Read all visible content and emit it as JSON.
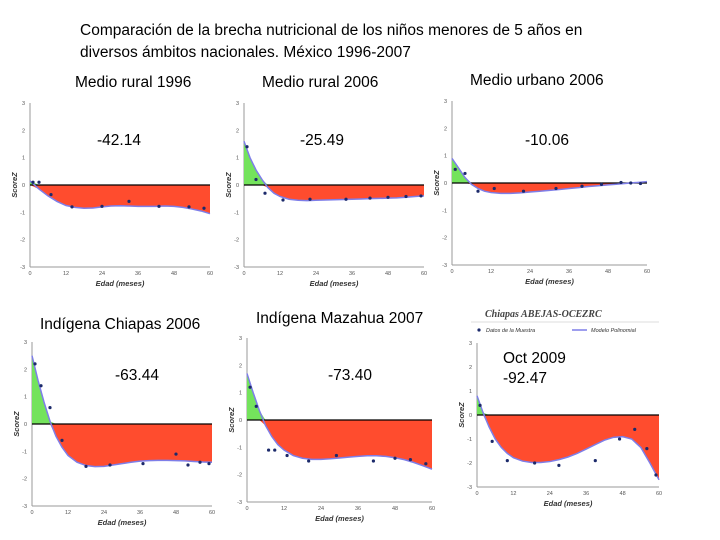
{
  "title": "Comparación de la brecha nutricional de los niños menores de 5 años en diversos ámbitos nacionales. México 1996-2007",
  "colors": {
    "deficit": "#ff4c2e",
    "surplus": "#74e35c",
    "curve": "#7e7ee8",
    "points": "#1c2a6b"
  },
  "chart_data": [
    {
      "type": "area",
      "panel_title": "Medio rural 1996",
      "value_label": "-42.14",
      "xlabel": "Edad (meses)",
      "ylabel": "ScoreZ",
      "xlim": [
        0,
        60
      ],
      "ylim": [
        -3,
        3
      ],
      "x_ticks": [
        "0",
        "12",
        "24",
        "36",
        "48",
        "60"
      ],
      "y_ticks": [
        "3",
        "2",
        "1",
        "0",
        "-1",
        "-2",
        "-3"
      ],
      "curve": {
        "x": [
          0,
          3,
          6,
          9,
          12,
          15,
          18,
          21,
          24,
          27,
          30,
          33,
          36,
          39,
          42,
          45,
          48,
          51,
          54,
          57,
          60
        ],
        "y": [
          0.15,
          -0.15,
          -0.4,
          -0.6,
          -0.75,
          -0.82,
          -0.85,
          -0.84,
          -0.8,
          -0.77,
          -0.76,
          -0.77,
          -0.78,
          -0.78,
          -0.78,
          -0.77,
          -0.78,
          -0.82,
          -0.88,
          -0.95,
          -1.05
        ]
      },
      "points": {
        "x": [
          1,
          3,
          7,
          14,
          24,
          33,
          43,
          53,
          58
        ],
        "y": [
          0.1,
          0.1,
          -0.35,
          -0.8,
          -0.78,
          -0.6,
          -0.78,
          -0.8,
          -0.85
        ]
      }
    },
    {
      "type": "area",
      "panel_title": "Medio rural  2006",
      "value_label": "-25.49",
      "xlabel": "Edad (meses)",
      "ylabel": "ScoreZ",
      "xlim": [
        0,
        60
      ],
      "ylim": [
        -3,
        3
      ],
      "x_ticks": [
        "0",
        "12",
        "24",
        "36",
        "48",
        "60"
      ],
      "y_ticks": [
        "3",
        "2",
        "1",
        "0",
        "-1",
        "-2",
        "-3"
      ],
      "curve": {
        "x": [
          0,
          2,
          4,
          6,
          8,
          10,
          12,
          15,
          18,
          21,
          24,
          27,
          30,
          33,
          36,
          39,
          42,
          45,
          48,
          51,
          54,
          57,
          60
        ],
        "y": [
          1.6,
          1.0,
          0.55,
          0.2,
          -0.1,
          -0.3,
          -0.42,
          -0.52,
          -0.56,
          -0.57,
          -0.56,
          -0.55,
          -0.54,
          -0.53,
          -0.52,
          -0.51,
          -0.5,
          -0.49,
          -0.48,
          -0.47,
          -0.45,
          -0.42,
          -0.4
        ]
      },
      "points": {
        "x": [
          1,
          4,
          7,
          13,
          22,
          34,
          42,
          48,
          54,
          59
        ],
        "y": [
          1.4,
          0.2,
          -0.3,
          -0.55,
          -0.52,
          -0.52,
          -0.48,
          -0.45,
          -0.42,
          -0.4
        ]
      }
    },
    {
      "type": "area",
      "panel_title": "Medio urbano  2006",
      "value_label": "-10.06",
      "xlabel": "Edad (meses)",
      "ylabel": "ScoreZ",
      "xlim": [
        0,
        60
      ],
      "ylim": [
        -3,
        3
      ],
      "x_ticks": [
        "0",
        "12",
        "24",
        "36",
        "48",
        "60"
      ],
      "y_ticks": [
        "3",
        "2",
        "1",
        "0",
        "-1",
        "-2",
        "-3"
      ],
      "curve": {
        "x": [
          0,
          2,
          4,
          6,
          8,
          10,
          12,
          15,
          18,
          21,
          24,
          27,
          30,
          33,
          36,
          39,
          42,
          45,
          48,
          51,
          54,
          57,
          60
        ],
        "y": [
          0.9,
          0.55,
          0.2,
          -0.05,
          -0.2,
          -0.3,
          -0.35,
          -0.38,
          -0.38,
          -0.36,
          -0.33,
          -0.3,
          -0.27,
          -0.24,
          -0.2,
          -0.17,
          -0.13,
          -0.1,
          -0.07,
          -0.04,
          -0.01,
          0.02,
          0.05
        ]
      },
      "points": {
        "x": [
          1,
          4,
          8,
          13,
          22,
          32,
          40,
          46,
          52,
          55,
          58
        ],
        "y": [
          0.5,
          0.35,
          -0.3,
          -0.2,
          -0.3,
          -0.2,
          -0.12,
          -0.05,
          0.02,
          0.0,
          -0.02
        ]
      }
    },
    {
      "type": "area",
      "panel_title": "Indígena Chiapas 2006",
      "value_label": "-63.44",
      "xlabel": "Edad (meses)",
      "ylabel": "ScoreZ",
      "xlim": [
        0,
        60
      ],
      "ylim": [
        -3,
        3
      ],
      "x_ticks": [
        "0",
        "12",
        "24",
        "36",
        "48",
        "60"
      ],
      "y_ticks": [
        "3",
        "2",
        "1",
        "0",
        "-1",
        "-2",
        "-3"
      ],
      "curve": {
        "x": [
          0,
          2,
          4,
          6,
          8,
          10,
          12,
          15,
          18,
          21,
          24,
          27,
          30,
          33,
          36,
          39,
          42,
          45,
          48,
          51,
          54,
          57,
          60
        ],
        "y": [
          2.5,
          1.6,
          0.8,
          0.1,
          -0.45,
          -0.85,
          -1.15,
          -1.4,
          -1.52,
          -1.56,
          -1.55,
          -1.5,
          -1.45,
          -1.4,
          -1.36,
          -1.34,
          -1.33,
          -1.33,
          -1.34,
          -1.35,
          -1.37,
          -1.39,
          -1.4
        ]
      },
      "points": {
        "x": [
          1,
          3,
          6,
          10,
          18,
          26,
          37,
          48,
          52,
          56,
          59
        ],
        "y": [
          2.2,
          1.4,
          0.6,
          -0.6,
          -1.55,
          -1.5,
          -1.45,
          -1.1,
          -1.5,
          -1.4,
          -1.45
        ]
      }
    },
    {
      "type": "area",
      "panel_title": "Indígena Mazahua 2007",
      "value_label": "-73.40",
      "xlabel": "Edad (meses)",
      "ylabel": "ScoreZ",
      "xlim": [
        0,
        60
      ],
      "ylim": [
        -3,
        3
      ],
      "x_ticks": [
        "0",
        "12",
        "24",
        "36",
        "48",
        "60"
      ],
      "y_ticks": [
        "3",
        "2",
        "1",
        "0",
        "-1",
        "-2",
        "-3"
      ],
      "curve": {
        "x": [
          0,
          2,
          4,
          6,
          8,
          10,
          12,
          15,
          18,
          21,
          24,
          27,
          30,
          33,
          36,
          39,
          42,
          45,
          48,
          51,
          54,
          57,
          60
        ],
        "y": [
          1.7,
          1.0,
          0.35,
          -0.2,
          -0.6,
          -0.9,
          -1.1,
          -1.3,
          -1.4,
          -1.44,
          -1.44,
          -1.42,
          -1.39,
          -1.36,
          -1.33,
          -1.31,
          -1.31,
          -1.33,
          -1.38,
          -1.45,
          -1.55,
          -1.67,
          -1.8
        ]
      },
      "points": {
        "x": [
          1,
          3,
          7,
          9,
          13,
          20,
          29,
          41,
          48,
          53,
          58
        ],
        "y": [
          1.2,
          0.5,
          -1.1,
          -1.1,
          -1.3,
          -1.5,
          -1.3,
          -1.5,
          -1.4,
          -1.45,
          -1.6
        ]
      }
    },
    {
      "type": "area",
      "panel_title": "Chiapas ABEJAS-OCEZRC",
      "value_label": "Oct 2009\n-92.47",
      "legend": [
        "Datos de la Muestra",
        "Modelo Polinomial"
      ],
      "xlabel": "Edad (meses)",
      "ylabel": "ScoreZ",
      "xlim": [
        0,
        60
      ],
      "ylim": [
        -3,
        3
      ],
      "x_ticks": [
        "0",
        "12",
        "24",
        "36",
        "48",
        "60"
      ],
      "y_ticks": [
        "3",
        "2",
        "1",
        "0",
        "-1",
        "-2",
        "-3"
      ],
      "curve": {
        "x": [
          0,
          2,
          4,
          6,
          8,
          10,
          12,
          15,
          18,
          21,
          24,
          27,
          30,
          33,
          36,
          39,
          42,
          45,
          48,
          51,
          54,
          57,
          60
        ],
        "y": [
          0.8,
          0.1,
          -0.5,
          -1.0,
          -1.35,
          -1.6,
          -1.78,
          -1.92,
          -1.98,
          -1.98,
          -1.94,
          -1.86,
          -1.75,
          -1.6,
          -1.42,
          -1.23,
          -1.05,
          -0.93,
          -0.9,
          -1.0,
          -1.35,
          -2.0,
          -2.7
        ]
      },
      "points": {
        "x": [
          1,
          5,
          10,
          19,
          27,
          39,
          47,
          52,
          56,
          59
        ],
        "y": [
          0.4,
          -1.1,
          -1.9,
          -2.0,
          -2.1,
          -1.9,
          -1.0,
          -0.6,
          -1.4,
          -2.5
        ]
      }
    }
  ]
}
